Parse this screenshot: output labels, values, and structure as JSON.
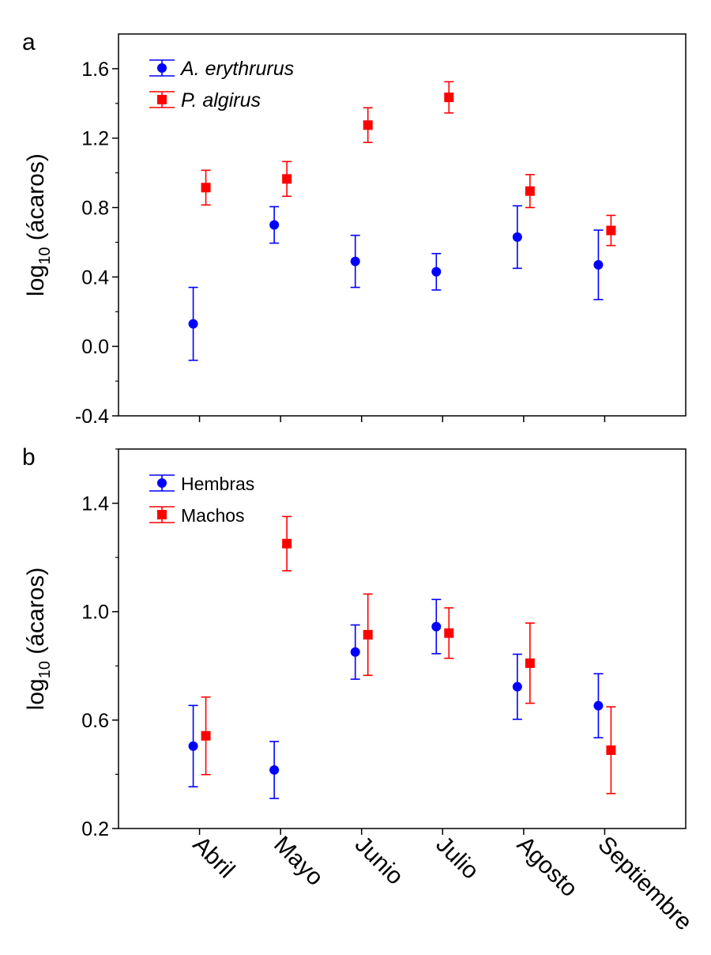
{
  "chart_data": [
    {
      "type": "scatter",
      "panel_label": "a",
      "ylabel": "log10 (ácaros)",
      "ylabel_main": "log",
      "ylabel_sub": "10",
      "ylabel_rest": " (ácaros)",
      "categories": [
        "Abril",
        "Mayo",
        "Junio",
        "Julio",
        "Agosto",
        "Septiembre"
      ],
      "ylim": [
        -0.4,
        1.8
      ],
      "yticks": [
        -0.4,
        0.0,
        0.4,
        0.8,
        1.2,
        1.6
      ],
      "ytick_labels": [
        "-0.4",
        "0.0",
        "0.4",
        "0.8",
        "1.2",
        "1.6"
      ],
      "legend_position": "top-left",
      "series": [
        {
          "name": "A. erythrurus",
          "marker": "circle",
          "color": "#0000ff",
          "values": [
            0.13,
            0.7,
            0.49,
            0.43,
            0.63,
            0.47
          ],
          "errors": [
            0.21,
            0.105,
            0.15,
            0.105,
            0.18,
            0.2
          ]
        },
        {
          "name": "P. algirus",
          "marker": "square",
          "color": "#ff0000",
          "values": [
            0.915,
            0.965,
            1.275,
            1.435,
            0.895,
            0.668
          ],
          "errors": [
            0.1,
            0.1,
            0.1,
            0.09,
            0.095,
            0.087
          ]
        }
      ]
    },
    {
      "type": "scatter",
      "panel_label": "b",
      "ylabel": "log10 (ácaros)",
      "ylabel_main": "log",
      "ylabel_sub": "10",
      "ylabel_rest": " (ácaros)",
      "categories": [
        "Abril",
        "Mayo",
        "Junio",
        "Julio",
        "Agosto",
        "Septiembre"
      ],
      "ylim": [
        0.2,
        1.6
      ],
      "yticks": [
        0.2,
        0.6,
        1.0,
        1.4
      ],
      "ytick_labels": [
        "0.2",
        "0.6",
        "1.0",
        "1.4"
      ],
      "legend_position": "top-left",
      "series": [
        {
          "name": "Hembras",
          "marker": "circle",
          "color": "#0000ff",
          "values": [
            0.504,
            0.416,
            0.851,
            0.945,
            0.723,
            0.653
          ],
          "errors": [
            0.15,
            0.105,
            0.1,
            0.1,
            0.12,
            0.118
          ]
        },
        {
          "name": "Machos",
          "marker": "square",
          "color": "#ff0000",
          "values": [
            0.542,
            1.251,
            0.915,
            0.921,
            0.81,
            0.489
          ],
          "errors": [
            0.143,
            0.1,
            0.15,
            0.093,
            0.148,
            0.16
          ]
        }
      ]
    }
  ]
}
